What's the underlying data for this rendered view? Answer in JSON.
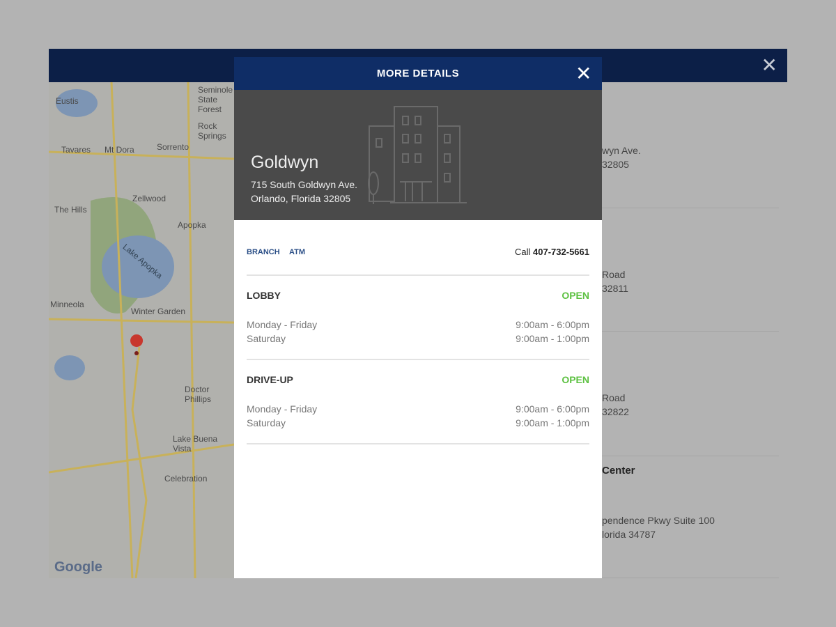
{
  "window": {
    "close_icon": "close-icon",
    "close_glyph": "✕"
  },
  "map": {
    "labels": [
      "Eustis",
      "Tavares",
      "Mt Dora",
      "Sorrento",
      "Zellwood",
      "The Hills",
      "Apopka",
      "Lake Apopka",
      "Minneola",
      "Winter Garden",
      "Doctor Phillips",
      "Lake Buena Vista",
      "Celebration",
      "Rock Springs",
      "Seminole State Forest"
    ],
    "logo": "Google"
  },
  "list": {
    "items": [
      {
        "title": "",
        "address": [
          "wyn Ave.",
          "32805"
        ]
      },
      {
        "title": "",
        "address": [
          "Road",
          "32811"
        ]
      },
      {
        "title": "",
        "address": [
          "Road",
          "32822"
        ]
      },
      {
        "title": "Center",
        "address": [
          "pendence Pkwy Suite 100",
          "lorida 34787"
        ]
      }
    ]
  },
  "modal": {
    "title": "MORE DETAILS",
    "close_glyph": "✕",
    "location": {
      "name": "Goldwyn",
      "address_line1": "715 South Goldwyn Ave.",
      "address_line2": "Orlando, Florida 32805"
    },
    "tabs": [
      "BRANCH",
      "ATM"
    ],
    "call_label": "Call",
    "phone": "407-732-5661",
    "sections": [
      {
        "title": "LOBBY",
        "status": "OPEN",
        "hours": [
          {
            "days": "Monday - Friday",
            "time": "9:00am - 6:00pm"
          },
          {
            "days": "Saturday",
            "time": "9:00am - 1:00pm"
          }
        ]
      },
      {
        "title": "DRIVE-UP",
        "status": "OPEN",
        "hours": [
          {
            "days": "Monday - Friday",
            "time": "9:00am - 6:00pm"
          },
          {
            "days": "Saturday",
            "time": "9:00am - 1:00pm"
          }
        ]
      }
    ],
    "colors": {
      "header": "#0f2d66",
      "open": "#5dc142",
      "hero": "#4a4a4a"
    }
  }
}
